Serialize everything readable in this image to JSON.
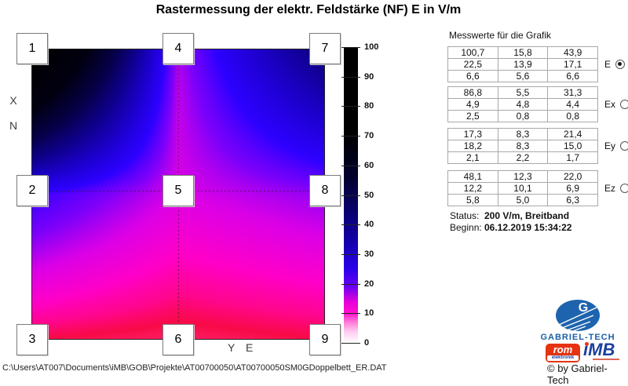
{
  "title": "Rastermessung der elektr. Feldstärke (NF) E in V/m",
  "plot": {
    "axis_x1": "X",
    "axis_x2": "N",
    "axis_y": "Y E"
  },
  "measurements": {
    "panel_title": "Messwerte für die Grafik",
    "groups": [
      {
        "name": "E",
        "selected": true,
        "rows": [
          [
            "100,7",
            "15,8",
            "43,9"
          ],
          [
            "22,5",
            "13,9",
            "17,1"
          ],
          [
            "6,6",
            "5,6",
            "6,6"
          ]
        ]
      },
      {
        "name": "Ex",
        "selected": false,
        "rows": [
          [
            "86,8",
            "5,5",
            "31,3"
          ],
          [
            "4,9",
            "4,8",
            "4,4"
          ],
          [
            "2,5",
            "0,8",
            "0,8"
          ]
        ]
      },
      {
        "name": "Ey",
        "selected": false,
        "rows": [
          [
            "17,3",
            "8,3",
            "21,4"
          ],
          [
            "18,2",
            "8,3",
            "15,0"
          ],
          [
            "2,1",
            "2,2",
            "1,7"
          ]
        ]
      },
      {
        "name": "Ez",
        "selected": false,
        "rows": [
          [
            "48,1",
            "12,3",
            "22,0"
          ],
          [
            "12,2",
            "10,1",
            "6,9"
          ],
          [
            "5,8",
            "5,0",
            "6,3"
          ]
        ]
      }
    ]
  },
  "status": {
    "label": "Status:",
    "value": "200 V/m, Breitband"
  },
  "begin": {
    "label": "Beginn:",
    "value": "06.12.2019 15:34:22"
  },
  "footer": {
    "path": "C:\\Users\\AT007\\Documents\\iMB\\GOB\\Projekte\\AT00700050\\AT00700050SM0GDoppelbett_ER.DAT"
  },
  "branding": {
    "g": "G",
    "name": "GABRIEL-TECH",
    "rom": "rom",
    "rom_sub": "elektronik",
    "imb": "iMB",
    "copyright": "© by Gabriel-Tech"
  },
  "chart_data": {
    "type": "heatmap",
    "title": "Rastermessung der elektr. Feldstärke (NF) E in V/m",
    "selected_component": "E",
    "marker_labels": [
      [
        "1",
        "4",
        "7"
      ],
      [
        "2",
        "5",
        "8"
      ],
      [
        "3",
        "6",
        "9"
      ]
    ],
    "values_E": [
      [
        100.7,
        15.8,
        43.9
      ],
      [
        22.5,
        13.9,
        17.1
      ],
      [
        6.6,
        5.6,
        6.6
      ]
    ],
    "values_Ex": [
      [
        86.8,
        5.5,
        31.3
      ],
      [
        4.9,
        4.8,
        4.4
      ],
      [
        2.5,
        0.8,
        0.8
      ]
    ],
    "values_Ey": [
      [
        17.3,
        8.3,
        21.4
      ],
      [
        18.2,
        8.3,
        15.0
      ],
      [
        2.1,
        2.2,
        1.7
      ]
    ],
    "values_Ez": [
      [
        48.1,
        12.3,
        22.0
      ],
      [
        12.2,
        10.1,
        6.9
      ],
      [
        5.8,
        5.0,
        6.3
      ]
    ],
    "scale": {
      "min": 0,
      "max": 100,
      "ticks": [
        100,
        90,
        80,
        70,
        60,
        50,
        40,
        30,
        20,
        10,
        0
      ],
      "unit": "V/m"
    },
    "colormap": [
      [
        0,
        "#ffffff"
      ],
      [
        3,
        "#ffc8ee"
      ],
      [
        4.8,
        "#ff8cc8"
      ],
      [
        5.6,
        "#ff1e64"
      ],
      [
        6.6,
        "#f80a48"
      ],
      [
        8.2,
        "#ff068e"
      ],
      [
        10.5,
        "#ff00c8"
      ],
      [
        14,
        "#dc00e6"
      ],
      [
        18,
        "#7c00fa"
      ],
      [
        23,
        "#2d00ff"
      ],
      [
        30,
        "#1e00d2"
      ],
      [
        40,
        "#100090"
      ],
      [
        52,
        "#060048"
      ],
      [
        68,
        "#010010"
      ],
      [
        100,
        "#000000"
      ]
    ],
    "colorbar_gradient": [
      [
        0,
        "#ffffff"
      ],
      [
        4,
        "#ffc8f0"
      ],
      [
        7,
        "#ff7ad8"
      ],
      [
        10,
        "#ff10cc"
      ],
      [
        14,
        "#e400da"
      ],
      [
        19,
        "#6a00f2"
      ],
      [
        25,
        "#2b00ea"
      ],
      [
        33,
        "#1600b2"
      ],
      [
        44,
        "#090070"
      ],
      [
        56,
        "#02002e"
      ],
      [
        70,
        "#000000"
      ],
      [
        100,
        "#000000"
      ]
    ],
    "grid_lines": {
      "vertical_at_col": 1,
      "horizontal_at_row": 1
    }
  }
}
